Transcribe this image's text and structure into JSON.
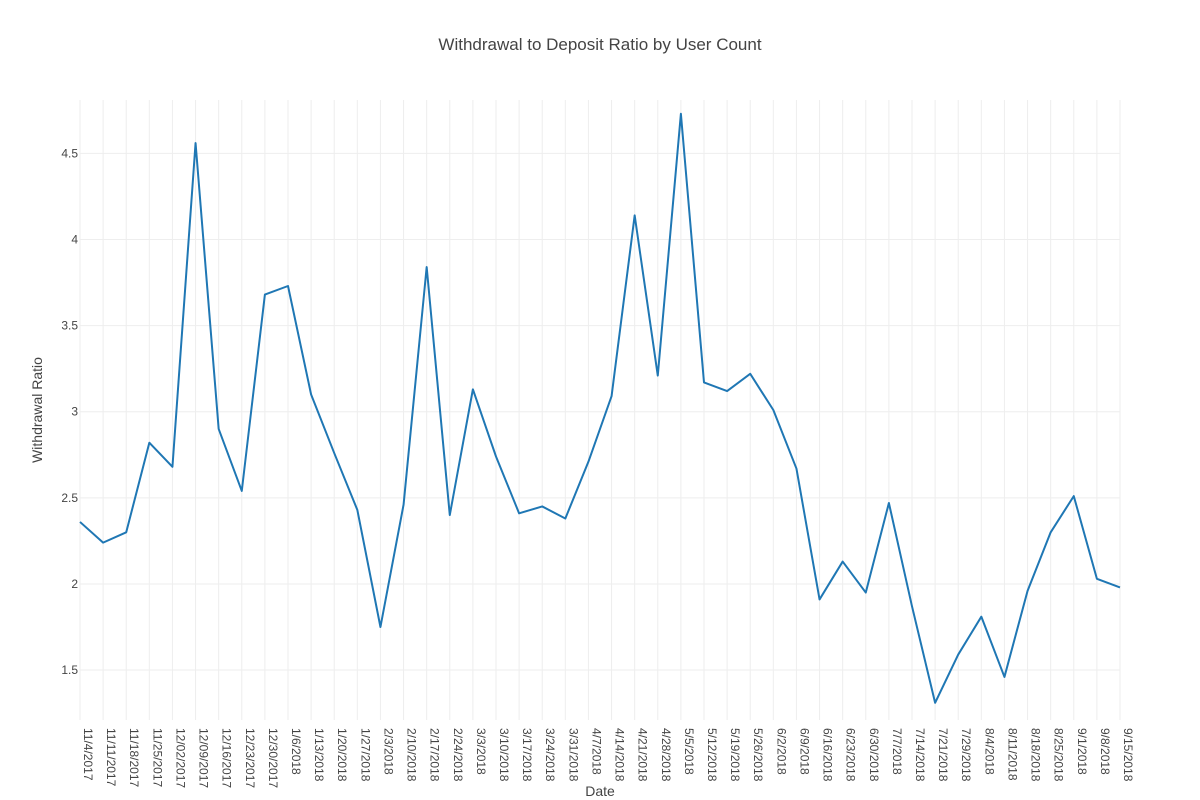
{
  "chart_data": {
    "type": "line",
    "title": "Withdrawal to Deposit Ratio by User Count",
    "xlabel": "Date",
    "ylabel": "Withdrawal Ratio",
    "ylim": [
      1.21,
      4.81
    ],
    "yticks": [
      1.5,
      2,
      2.5,
      3,
      3.5,
      4,
      4.5
    ],
    "ytick_labels": [
      "1.5",
      "2",
      "2.5",
      "3",
      "3.5",
      "4",
      "4.5"
    ],
    "grid": true,
    "legend": "none",
    "line_color": "#1f77b4",
    "categories": [
      "11/4/2017",
      "11/11/2017",
      "11/18/2017",
      "11/25/2017",
      "12/02/2017",
      "12/09/2017",
      "12/16/2017",
      "12/23/2017",
      "12/30/2017",
      "1/6/2018",
      "1/13/2018",
      "1/20/2018",
      "1/27/2018",
      "2/3/2018",
      "2/10/2018",
      "2/17/2018",
      "2/24/2018",
      "3/3/2018",
      "3/10/2018",
      "3/17/2018",
      "3/24/2018",
      "3/31/2018",
      "4/7/2018",
      "4/14/2018",
      "4/21/2018",
      "4/28/2018",
      "5/5/2018",
      "5/12/2018",
      "5/19/2018",
      "5/26/2018",
      "6/2/2018",
      "6/9/2018",
      "6/16/2018",
      "6/23/2018",
      "6/30/2018",
      "7/7/2018",
      "7/14/2018",
      "7/21/2018",
      "7/29/2018",
      "8/4/2018",
      "8/11/2018",
      "8/18/2018",
      "8/25/2018",
      "9/1/2018",
      "9/8/2018",
      "9/15/2018"
    ],
    "series": [
      {
        "values": [
          2.36,
          2.24,
          2.3,
          2.82,
          2.68,
          4.56,
          2.9,
          2.54,
          3.68,
          3.73,
          3.1,
          2.76,
          2.43,
          1.75,
          2.46,
          3.84,
          2.4,
          3.13,
          2.74,
          2.41,
          2.45,
          2.38,
          2.71,
          3.09,
          4.14,
          3.21,
          4.73,
          3.17,
          3.12,
          3.22,
          3.01,
          2.67,
          1.91,
          2.13,
          1.95,
          2.47,
          1.87,
          1.31,
          1.59,
          1.81,
          1.46,
          1.96,
          2.3,
          2.51,
          2.03,
          1.98
        ]
      }
    ]
  }
}
